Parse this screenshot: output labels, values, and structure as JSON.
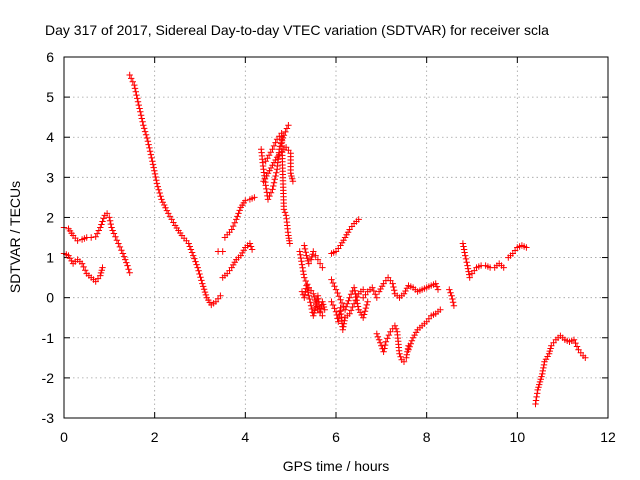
{
  "chart_data": {
    "type": "scatter",
    "title": "Day 317 of 2017, Sidereal Day-to-day VTEC variation (SDTVAR) for receiver scla",
    "xlabel": "GPS time / hours",
    "ylabel": "SDTVAR / TECUs",
    "xlim": [
      0,
      12
    ],
    "ylim": [
      -3,
      6
    ],
    "xticks": [
      "0",
      "2",
      "4",
      "6",
      "8",
      "10",
      "12"
    ],
    "yticks": [
      "-3",
      "-2",
      "-1",
      "0",
      "1",
      "2",
      "3",
      "4",
      "5",
      "6"
    ],
    "grid": true,
    "marker": "plus",
    "color": "#ff0000",
    "segments": [
      [
        [
          0.0,
          1.75
        ],
        [
          0.1,
          1.72
        ],
        [
          0.2,
          1.55
        ],
        [
          0.3,
          1.42
        ],
        [
          0.4,
          1.45
        ],
        [
          0.5,
          1.5
        ],
        [
          0.6,
          1.5
        ],
        [
          0.7,
          1.52
        ],
        [
          0.8,
          1.75
        ],
        [
          0.9,
          2.05
        ],
        [
          0.95,
          2.1
        ],
        [
          1.0,
          2.0
        ],
        [
          1.05,
          1.75
        ],
        [
          1.1,
          1.6
        ],
        [
          1.2,
          1.35
        ],
        [
          1.3,
          1.1
        ],
        [
          1.4,
          0.8
        ],
        [
          1.45,
          0.62
        ]
      ],
      [
        [
          0.0,
          1.1
        ],
        [
          0.1,
          1.05
        ],
        [
          0.2,
          0.85
        ],
        [
          0.3,
          0.95
        ],
        [
          0.4,
          0.85
        ],
        [
          0.5,
          0.6
        ],
        [
          0.6,
          0.5
        ],
        [
          0.7,
          0.4
        ],
        [
          0.8,
          0.55
        ],
        [
          0.85,
          0.75
        ]
      ],
      [
        [
          1.45,
          5.55
        ],
        [
          1.55,
          5.3
        ],
        [
          1.65,
          4.8
        ],
        [
          1.75,
          4.3
        ],
        [
          1.85,
          3.9
        ],
        [
          1.95,
          3.4
        ],
        [
          2.05,
          2.85
        ],
        [
          2.15,
          2.45
        ],
        [
          2.3,
          2.1
        ],
        [
          2.45,
          1.8
        ],
        [
          2.6,
          1.55
        ],
        [
          2.75,
          1.35
        ],
        [
          2.85,
          1.05
        ],
        [
          2.95,
          0.75
        ],
        [
          3.05,
          0.35
        ],
        [
          3.15,
          0.0
        ],
        [
          3.25,
          -0.18
        ],
        [
          3.35,
          -0.1
        ],
        [
          3.45,
          0.05
        ]
      ],
      [
        [
          3.4,
          1.15
        ],
        [
          3.5,
          1.15
        ]
      ],
      [
        [
          3.5,
          0.5
        ],
        [
          3.6,
          0.6
        ],
        [
          3.7,
          0.75
        ],
        [
          3.8,
          0.95
        ],
        [
          3.9,
          1.05
        ],
        [
          4.0,
          1.25
        ],
        [
          4.1,
          1.35
        ],
        [
          4.15,
          1.2
        ]
      ],
      [
        [
          3.55,
          1.5
        ],
        [
          3.7,
          1.7
        ],
        [
          3.8,
          1.95
        ],
        [
          3.9,
          2.25
        ],
        [
          4.0,
          2.42
        ],
        [
          4.1,
          2.45
        ],
        [
          4.2,
          2.5
        ]
      ],
      [
        [
          4.35,
          3.7
        ],
        [
          4.4,
          3.2
        ],
        [
          4.45,
          2.8
        ],
        [
          4.5,
          2.45
        ],
        [
          4.6,
          2.7
        ],
        [
          4.7,
          3.2
        ],
        [
          4.75,
          3.7
        ],
        [
          4.85,
          4.05
        ],
        [
          4.95,
          4.3
        ]
      ],
      [
        [
          4.4,
          2.9
        ],
        [
          4.5,
          3.1
        ],
        [
          4.6,
          3.3
        ],
        [
          4.7,
          3.5
        ],
        [
          4.8,
          3.65
        ],
        [
          4.9,
          3.75
        ],
        [
          5.0,
          3.6
        ],
        [
          5.0,
          3.1
        ],
        [
          5.05,
          2.9
        ]
      ],
      [
        [
          4.45,
          3.4
        ],
        [
          4.6,
          3.7
        ],
        [
          4.7,
          3.95
        ],
        [
          4.8,
          4.1
        ],
        [
          4.85,
          2.2
        ],
        [
          4.9,
          2.05
        ],
        [
          4.95,
          1.55
        ],
        [
          4.98,
          1.35
        ]
      ],
      [
        [
          5.3,
          1.3
        ],
        [
          5.35,
          1.05
        ],
        [
          5.4,
          0.85
        ],
        [
          5.45,
          0.95
        ],
        [
          5.5,
          1.15
        ],
        [
          5.55,
          1.05
        ],
        [
          5.6,
          0.95
        ],
        [
          5.65,
          0.85
        ],
        [
          5.7,
          0.75
        ]
      ],
      [
        [
          5.25,
          0.15
        ],
        [
          5.3,
          0.0
        ],
        [
          5.35,
          0.3
        ],
        [
          5.4,
          0.05
        ],
        [
          5.45,
          -0.2
        ],
        [
          5.5,
          -0.45
        ],
        [
          5.55,
          -0.25
        ],
        [
          5.6,
          0.05
        ],
        [
          5.65,
          -0.35
        ],
        [
          5.7,
          -0.1
        ],
        [
          5.75,
          -0.3
        ]
      ],
      [
        [
          5.2,
          1.15
        ],
        [
          5.3,
          0.5
        ],
        [
          5.4,
          0.25
        ],
        [
          5.5,
          0.1
        ],
        [
          5.6,
          -0.3
        ],
        [
          5.7,
          -0.45
        ]
      ],
      [
        [
          5.9,
          1.1
        ],
        [
          6.0,
          1.15
        ],
        [
          6.1,
          1.3
        ],
        [
          6.2,
          1.5
        ],
        [
          6.3,
          1.7
        ],
        [
          6.4,
          1.85
        ],
        [
          6.5,
          1.95
        ]
      ],
      [
        [
          5.9,
          -0.1
        ],
        [
          6.0,
          -0.35
        ],
        [
          6.05,
          -0.6
        ],
        [
          6.1,
          -0.25
        ],
        [
          6.15,
          -0.8
        ],
        [
          6.2,
          -0.5
        ],
        [
          6.3,
          -0.4
        ],
        [
          6.4,
          -0.15
        ],
        [
          6.5,
          0.1
        ],
        [
          6.6,
          0.2
        ]
      ],
      [
        [
          5.9,
          0.45
        ],
        [
          6.0,
          0.2
        ],
        [
          6.1,
          -0.05
        ],
        [
          6.2,
          -0.3
        ],
        [
          6.3,
          0.0
        ],
        [
          6.4,
          0.25
        ],
        [
          6.5,
          -0.3
        ],
        [
          6.6,
          -0.5
        ],
        [
          6.7,
          -0.1
        ]
      ],
      [
        [
          6.6,
          0.0
        ],
        [
          6.7,
          0.15
        ],
        [
          6.8,
          0.25
        ],
        [
          6.9,
          0.0
        ]
      ],
      [
        [
          6.95,
          0.15
        ],
        [
          7.05,
          0.35
        ],
        [
          7.15,
          0.5
        ],
        [
          7.25,
          0.35
        ],
        [
          7.3,
          0.1
        ],
        [
          7.4,
          0.0
        ],
        [
          7.5,
          0.1
        ],
        [
          7.6,
          0.3
        ],
        [
          7.7,
          0.25
        ],
        [
          7.8,
          0.15
        ],
        [
          7.9,
          0.2
        ],
        [
          8.0,
          0.25
        ],
        [
          8.1,
          0.3
        ],
        [
          8.2,
          0.35
        ],
        [
          8.25,
          0.2
        ]
      ],
      [
        [
          6.9,
          -0.9
        ],
        [
          7.0,
          -1.2
        ],
        [
          7.05,
          -1.35
        ],
        [
          7.1,
          -1.1
        ],
        [
          7.2,
          -0.85
        ],
        [
          7.3,
          -0.7
        ],
        [
          7.35,
          -0.85
        ],
        [
          7.4,
          -1.4
        ],
        [
          7.45,
          -1.55
        ],
        [
          7.5,
          -1.6
        ],
        [
          7.55,
          -1.5
        ],
        [
          7.6,
          -1.2
        ]
      ],
      [
        [
          7.6,
          -1.3
        ],
        [
          7.7,
          -1.0
        ],
        [
          7.8,
          -0.8
        ],
        [
          7.9,
          -0.7
        ],
        [
          8.0,
          -0.6
        ],
        [
          8.1,
          -0.45
        ],
        [
          8.2,
          -0.4
        ],
        [
          8.3,
          -0.3
        ]
      ],
      [
        [
          8.5,
          0.2
        ],
        [
          8.55,
          0.05
        ],
        [
          8.6,
          -0.2
        ]
      ],
      [
        [
          8.8,
          1.35
        ],
        [
          8.85,
          1.05
        ],
        [
          8.9,
          0.8
        ],
        [
          8.95,
          0.5
        ],
        [
          9.0,
          0.6
        ],
        [
          9.1,
          0.75
        ],
        [
          9.2,
          0.8
        ],
        [
          9.3,
          0.8
        ],
        [
          9.4,
          0.75
        ],
        [
          9.5,
          0.75
        ],
        [
          9.6,
          0.85
        ],
        [
          9.7,
          0.75
        ]
      ],
      [
        [
          9.8,
          1.0
        ],
        [
          9.9,
          1.1
        ],
        [
          10.0,
          1.25
        ],
        [
          10.1,
          1.3
        ],
        [
          10.2,
          1.25
        ]
      ],
      [
        [
          10.4,
          -2.65
        ],
        [
          10.45,
          -2.3
        ],
        [
          10.5,
          -2.1
        ],
        [
          10.55,
          -1.9
        ],
        [
          10.6,
          -1.6
        ],
        [
          10.7,
          -1.4
        ],
        [
          10.75,
          -1.2
        ],
        [
          10.85,
          -1.05
        ],
        [
          10.95,
          -0.95
        ],
        [
          11.05,
          -1.05
        ],
        [
          11.15,
          -1.1
        ],
        [
          11.25,
          -1.05
        ],
        [
          11.35,
          -1.3
        ],
        [
          11.45,
          -1.45
        ],
        [
          11.5,
          -1.5
        ]
      ]
    ]
  }
}
